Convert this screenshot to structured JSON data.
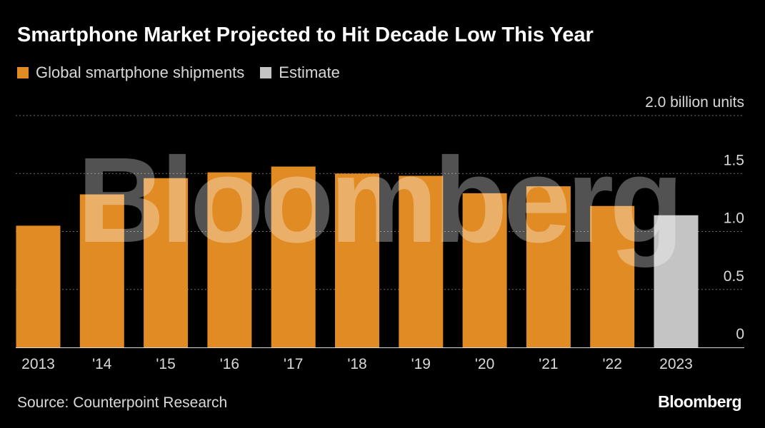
{
  "header": {
    "title": "Smartphone Market Projected to Hit Decade Low This Year"
  },
  "legend": {
    "items": [
      {
        "label": "Global smartphone shipments",
        "color": "#e08b23"
      },
      {
        "label": "Estimate",
        "color": "#c4c4c4"
      }
    ]
  },
  "footer": {
    "source": "Source: Counterpoint Research",
    "brand": "Bloomberg"
  },
  "watermark": {
    "text": "Bloomberg"
  },
  "chart_data": {
    "type": "bar",
    "title": "Smartphone Market Projected to Hit Decade Low This Year",
    "xlabel": "",
    "ylabel": "",
    "unit_label": "2.0 billion units",
    "categories": [
      "2013",
      "'14",
      "'15",
      "'16",
      "'17",
      "'18",
      "'19",
      "'20",
      "'21",
      "'22",
      "2023"
    ],
    "values": [
      1.05,
      1.32,
      1.46,
      1.51,
      1.56,
      1.5,
      1.48,
      1.33,
      1.39,
      1.22,
      1.14
    ],
    "estimate_flags": [
      false,
      false,
      false,
      false,
      false,
      false,
      false,
      false,
      false,
      false,
      true
    ],
    "series_colors": {
      "actual": "#e08b23",
      "estimate": "#c4c4c4"
    },
    "ylim": [
      0,
      2.0
    ],
    "yticks": [
      {
        "value": 0,
        "label": "0"
      },
      {
        "value": 0.5,
        "label": "0.5"
      },
      {
        "value": 1.0,
        "label": "1.0"
      },
      {
        "value": 1.5,
        "label": "1.5"
      },
      {
        "value": 2.0,
        "label": "2.0 billion units"
      }
    ],
    "grid": true,
    "legend_position": "top-left"
  }
}
